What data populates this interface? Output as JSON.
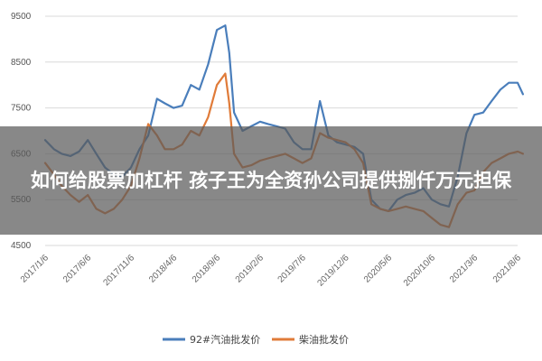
{
  "article": {
    "headline": "如何给股票加杠杆 孩子王为全资孙公司提供捌仟万元担保"
  },
  "chart_data": {
    "type": "line",
    "ylim": [
      4500,
      9500
    ],
    "y_ticks": [
      "9500",
      "8500",
      "7500",
      "6500",
      "5500",
      "4500"
    ],
    "grid": "horizontal",
    "legend": "bottom",
    "x_ticks": [
      "2017/1/6",
      "2017/6/6",
      "2017/11/6",
      "2018/4/6",
      "2018/9/6",
      "2019/2/6",
      "2019/7/6",
      "2019/12/6",
      "2020/5/6",
      "2020/10/6",
      "2021/3/6",
      "2021/8/6"
    ],
    "series": [
      {
        "name": "92#汽油批发价",
        "color": "#4a7ebb",
        "x": [
          "2017/1/6",
          "2017/2/6",
          "2017/3/6",
          "2017/4/6",
          "2017/5/6",
          "2017/6/6",
          "2017/7/6",
          "2017/8/6",
          "2017/9/6",
          "2017/10/6",
          "2017/11/6",
          "2017/12/6",
          "2018/1/6",
          "2018/2/6",
          "2018/3/6",
          "2018/4/6",
          "2018/5/6",
          "2018/6/6",
          "2018/7/6",
          "2018/8/6",
          "2018/9/6",
          "2018/10/6",
          "2018/10/20",
          "2018/11/6",
          "2018/12/6",
          "2019/1/6",
          "2019/2/6",
          "2019/3/6",
          "2019/4/6",
          "2019/5/6",
          "2019/6/6",
          "2019/7/6",
          "2019/8/6",
          "2019/9/6",
          "2019/10/6",
          "2019/11/6",
          "2019/12/6",
          "2020/1/6",
          "2020/2/6",
          "2020/3/6",
          "2020/4/6",
          "2020/5/6",
          "2020/6/6",
          "2020/7/6",
          "2020/8/6",
          "2020/9/6",
          "2020/10/6",
          "2020/11/6",
          "2020/12/6",
          "2021/1/6",
          "2021/2/6",
          "2021/3/6",
          "2021/4/6",
          "2021/5/6",
          "2021/6/6",
          "2021/7/6",
          "2021/8/6",
          "2021/8/25"
        ],
        "values": [
          6800,
          6600,
          6500,
          6450,
          6550,
          6800,
          6500,
          6200,
          6050,
          6000,
          6200,
          6600,
          6900,
          7700,
          7600,
          7500,
          7550,
          8000,
          7900,
          8450,
          9200,
          9300,
          8700,
          7400,
          7000,
          7100,
          7200,
          7150,
          7100,
          7050,
          6750,
          6600,
          6600,
          7650,
          6900,
          6750,
          6700,
          6650,
          6500,
          5500,
          5300,
          5250,
          5500,
          5600,
          5650,
          5750,
          5500,
          5400,
          5350,
          6000,
          6950,
          7350,
          7400,
          7650,
          7900,
          8050,
          8050,
          7800
        ]
      },
      {
        "name": "柴油批发价",
        "color": "#e07b39",
        "x": [
          "2017/1/6",
          "2017/2/6",
          "2017/3/6",
          "2017/4/6",
          "2017/5/6",
          "2017/6/6",
          "2017/7/6",
          "2017/8/6",
          "2017/9/6",
          "2017/10/6",
          "2017/11/6",
          "2017/12/6",
          "2018/1/6",
          "2018/2/6",
          "2018/3/6",
          "2018/4/6",
          "2018/5/6",
          "2018/6/6",
          "2018/7/6",
          "2018/8/6",
          "2018/9/6",
          "2018/10/6",
          "2018/10/20",
          "2018/11/6",
          "2018/12/6",
          "2019/1/6",
          "2019/2/6",
          "2019/3/6",
          "2019/4/6",
          "2019/5/6",
          "2019/6/6",
          "2019/7/6",
          "2019/8/6",
          "2019/9/6",
          "2019/10/6",
          "2019/11/6",
          "2019/12/6",
          "2020/1/6",
          "2020/2/6",
          "2020/3/6",
          "2020/4/6",
          "2020/5/6",
          "2020/6/6",
          "2020/7/6",
          "2020/8/6",
          "2020/9/6",
          "2020/10/6",
          "2020/11/6",
          "2020/12/6",
          "2021/1/6",
          "2021/2/6",
          "2021/3/6",
          "2021/4/6",
          "2021/5/6",
          "2021/6/6",
          "2021/7/6",
          "2021/8/6",
          "2021/8/25"
        ],
        "values": [
          6300,
          6050,
          5800,
          5600,
          5450,
          5600,
          5300,
          5200,
          5300,
          5500,
          5800,
          6400,
          7150,
          6900,
          6600,
          6600,
          6700,
          7000,
          6900,
          7300,
          8000,
          8250,
          7600,
          6500,
          6200,
          6250,
          6350,
          6400,
          6450,
          6500,
          6400,
          6300,
          6400,
          6950,
          6850,
          6800,
          6750,
          6600,
          6300,
          5400,
          5300,
          5250,
          5300,
          5350,
          5300,
          5250,
          5100,
          4950,
          4900,
          5400,
          5650,
          5700,
          6100,
          6300,
          6400,
          6500,
          6550,
          6500
        ]
      }
    ]
  }
}
